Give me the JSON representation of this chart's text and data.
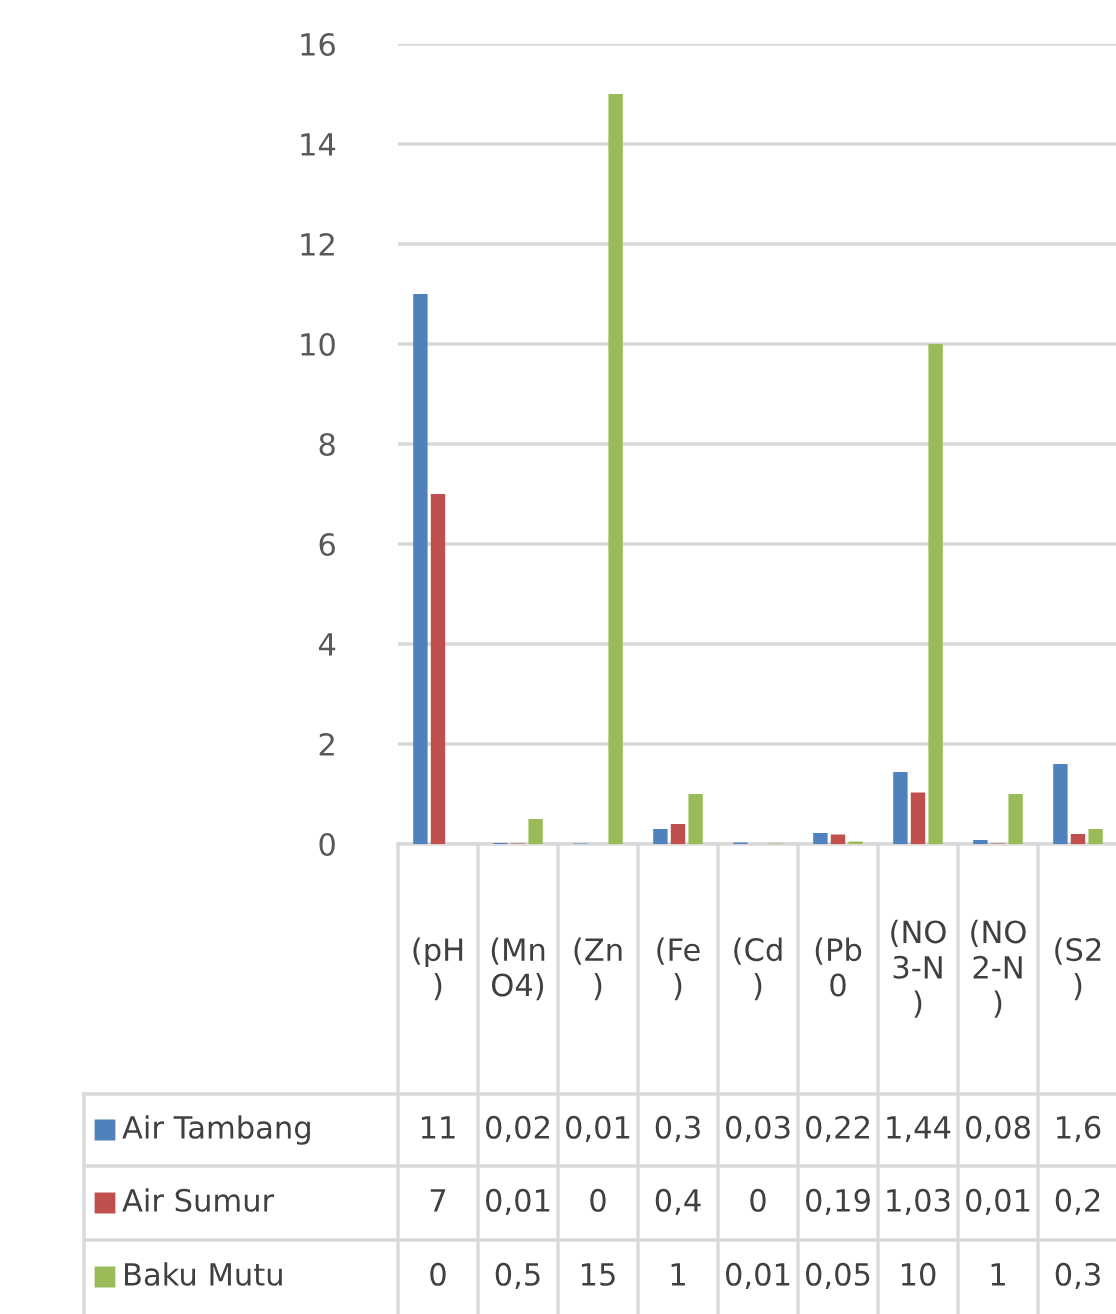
{
  "chart_data": {
    "type": "bar",
    "categories": [
      "(pH)",
      "(MnO4)",
      "(Zn)",
      "(Fe)",
      "(Cd)",
      "(Pb0",
      "(NO3-N)",
      "(NO2-N)",
      "(S2)"
    ],
    "series": [
      {
        "name": "Air Tambang",
        "color": "#4f81bd",
        "values": [
          11,
          0.02,
          0.01,
          0.3,
          0.03,
          0.22,
          1.44,
          0.08,
          1.6
        ],
        "value_labels": [
          "11",
          "0,02",
          "0,01",
          "0,3",
          "0,03",
          "0,22",
          "1,44",
          "0,08",
          "1,6"
        ]
      },
      {
        "name": "Air Sumur",
        "color": "#c0504d",
        "values": [
          7,
          0.01,
          0,
          0.4,
          0,
          0.19,
          1.03,
          0.01,
          0.2
        ],
        "value_labels": [
          "7",
          "0,01",
          "0",
          "0,4",
          "0",
          "0,19",
          "1,03",
          "0,01",
          "0,2"
        ]
      },
      {
        "name": "Baku Mutu",
        "color": "#9bbb59",
        "values": [
          0,
          0.5,
          15,
          1,
          0.01,
          0.05,
          10,
          1,
          0.3
        ],
        "value_labels": [
          "0",
          "0,5",
          "15",
          "1",
          "0,01",
          "0,05",
          "10",
          "1",
          "0,3"
        ]
      }
    ],
    "ylim": [
      0,
      16
    ],
    "yticks": [
      0,
      2,
      4,
      6,
      8,
      10,
      12,
      14,
      16
    ],
    "grid": "y",
    "legend": "bottom"
  }
}
